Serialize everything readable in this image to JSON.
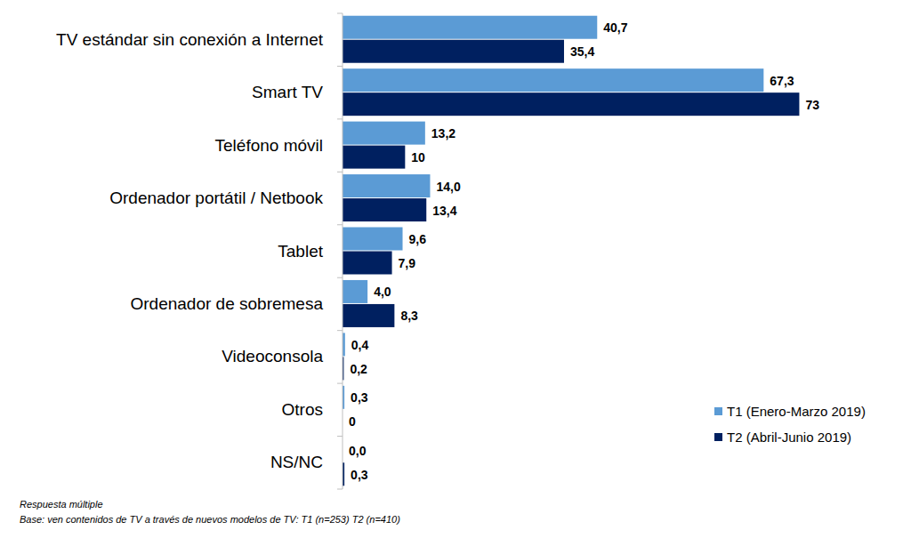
{
  "chart_data": {
    "type": "bar",
    "orientation": "horizontal",
    "categories": [
      "TV estándar sin conexión a Internet",
      "Smart TV",
      "Teléfono móvil",
      "Ordenador portátil / Netbook",
      "Tablet",
      "Ordenador de sobremesa",
      "Videoconsola",
      "Otros",
      "NS/NC"
    ],
    "series": [
      {
        "name": "T1 (Enero-Marzo 2019)",
        "color": "#5b9bd5",
        "values": [
          40.7,
          67.3,
          13.2,
          14.0,
          9.6,
          4.0,
          0.4,
          0.3,
          0.0
        ],
        "value_labels": [
          "40,7",
          "67,3",
          "13,2",
          "14,0",
          "9,6",
          "4,0",
          "0,4",
          "0,3",
          "0,0"
        ]
      },
      {
        "name": "T2 (Abril-Junio 2019)",
        "color": "#002060",
        "values": [
          35.4,
          73,
          10,
          13.4,
          7.9,
          8.3,
          0.2,
          0,
          0.3
        ],
        "value_labels": [
          "35,4",
          "73",
          "10",
          "13,4",
          "7,9",
          "8,3",
          "0,2",
          "0",
          "0,3"
        ]
      }
    ],
    "xlim": [
      0,
      90
    ],
    "tick_labels": false,
    "grid": false,
    "data_labels": true,
    "legend": "lower right",
    "annotations": [
      "Respuesta múltiple",
      "Base: ven contenidos de TV a través de nuevos modelos de TV: T1 (n=253) T2 (n=410)"
    ]
  }
}
